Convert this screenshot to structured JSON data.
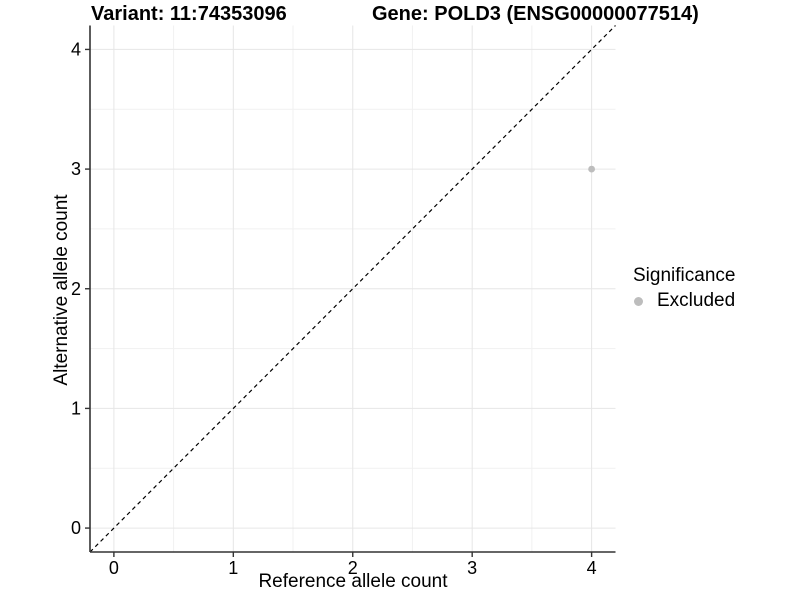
{
  "titles": {
    "variant": "Variant: 11:74353096",
    "gene": "Gene: POLD3 (ENSG00000077514)"
  },
  "legend": {
    "title": "Significance",
    "items": [
      {
        "label": "Excluded",
        "color": "#bdbdbd"
      }
    ]
  },
  "chart_data": {
    "type": "scatter",
    "title_left": "Variant: 11:74353096",
    "title_right": "Gene: POLD3 (ENSG00000077514)",
    "xlabel": "Reference allele count",
    "ylabel": "Alternative allele count",
    "xlim": [
      -0.2,
      4.2
    ],
    "ylim": [
      -0.2,
      4.2
    ],
    "xticks": [
      0,
      1,
      2,
      3,
      4
    ],
    "yticks": [
      0,
      1,
      2,
      3,
      4
    ],
    "minor_xticks": [
      0.5,
      1.5,
      2.5,
      3.5
    ],
    "minor_yticks": [
      0.5,
      1.5,
      2.5,
      3.5
    ],
    "grid": true,
    "legend_position": "right",
    "reference_line": {
      "type": "identity",
      "slope": 1,
      "intercept": 0,
      "style": "dashed",
      "color": "#000000"
    },
    "series": [
      {
        "name": "Excluded",
        "color": "#bdbdbd",
        "points": [
          {
            "x": 4,
            "y": 3
          }
        ]
      }
    ],
    "colors": {
      "axis_line": "#333333",
      "tick_label": "#000000",
      "grid_major": "#e6e6e6",
      "grid_minor": "#f1f1f1",
      "background": "#ffffff"
    }
  }
}
